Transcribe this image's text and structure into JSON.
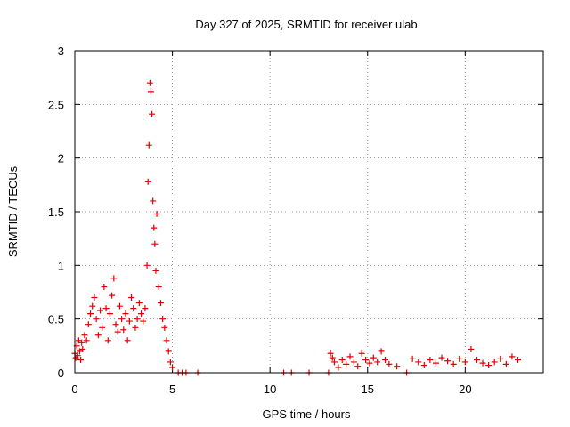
{
  "chart_data": {
    "type": "scatter",
    "title": "Day 327 of 2025, SRMTID for receiver ulab",
    "xlabel": "GPS time / hours",
    "ylabel": "SRMTID / TECUs",
    "xlim": [
      0,
      24
    ],
    "ylim": [
      0,
      3
    ],
    "xticks": [
      0,
      5,
      10,
      15,
      20
    ],
    "yticks": [
      0,
      0.5,
      1,
      1.5,
      2,
      2.5,
      3
    ],
    "xtick_labels": [
      "0",
      "5",
      "10",
      "15",
      "20"
    ],
    "ytick_labels": [
      "0",
      "0.5",
      "1",
      "1.5",
      "2",
      "2.5",
      "3"
    ],
    "grid": true,
    "marker": "+",
    "color": "#e00000",
    "series": [
      {
        "name": "SRMTID",
        "x": [
          0.0,
          0.05,
          0.1,
          0.15,
          0.2,
          0.25,
          0.3,
          0.35,
          0.4,
          0.5,
          0.6,
          0.7,
          0.8,
          0.9,
          1.0,
          1.1,
          1.2,
          1.3,
          1.4,
          1.5,
          1.6,
          1.7,
          1.8,
          1.9,
          2.0,
          2.1,
          2.2,
          2.3,
          2.4,
          2.5,
          2.6,
          2.7,
          2.8,
          2.9,
          3.0,
          3.1,
          3.2,
          3.3,
          3.4,
          3.5,
          3.6,
          3.7,
          3.75,
          3.8,
          3.85,
          3.9,
          3.95,
          4.0,
          4.05,
          4.1,
          4.15,
          4.2,
          4.3,
          4.4,
          4.5,
          4.6,
          4.7,
          4.8,
          4.9,
          5.0,
          5.3,
          5.5,
          5.7,
          6.3,
          10.7,
          11.1,
          12.0,
          13.0,
          13.1,
          13.2,
          13.3,
          13.5,
          13.7,
          13.9,
          14.1,
          14.3,
          14.5,
          14.7,
          14.9,
          15.1,
          15.3,
          15.5,
          15.7,
          15.9,
          16.1,
          16.5,
          17.0,
          17.3,
          17.6,
          17.9,
          18.2,
          18.5,
          18.8,
          19.1,
          19.4,
          19.7,
          20.0,
          20.3,
          20.6,
          20.9,
          21.2,
          21.5,
          21.8,
          22.1,
          22.4,
          22.7
        ],
        "y": [
          0.18,
          0.14,
          0.25,
          0.16,
          0.3,
          0.2,
          0.12,
          0.28,
          0.22,
          0.35,
          0.3,
          0.45,
          0.55,
          0.62,
          0.7,
          0.5,
          0.35,
          0.58,
          0.42,
          0.8,
          0.6,
          0.3,
          0.55,
          0.72,
          0.88,
          0.45,
          0.38,
          0.62,
          0.5,
          0.4,
          0.55,
          0.3,
          0.48,
          0.7,
          0.6,
          0.42,
          0.5,
          0.65,
          0.55,
          0.48,
          0.6,
          1.0,
          1.78,
          2.12,
          2.7,
          2.62,
          2.41,
          1.6,
          1.35,
          1.2,
          0.95,
          1.48,
          0.8,
          0.65,
          0.5,
          0.42,
          0.3,
          0.2,
          0.1,
          0.05,
          0.0,
          0.0,
          0.0,
          0.0,
          0.0,
          0.0,
          0.0,
          0.0,
          0.18,
          0.14,
          0.1,
          0.05,
          0.12,
          0.08,
          0.15,
          0.1,
          0.06,
          0.18,
          0.12,
          0.09,
          0.14,
          0.1,
          0.2,
          0.12,
          0.08,
          0.06,
          0.0,
          0.13,
          0.1,
          0.07,
          0.12,
          0.09,
          0.14,
          0.11,
          0.08,
          0.13,
          0.1,
          0.22,
          0.12,
          0.09,
          0.07,
          0.1,
          0.13,
          0.08,
          0.15,
          0.12
        ]
      }
    ]
  }
}
